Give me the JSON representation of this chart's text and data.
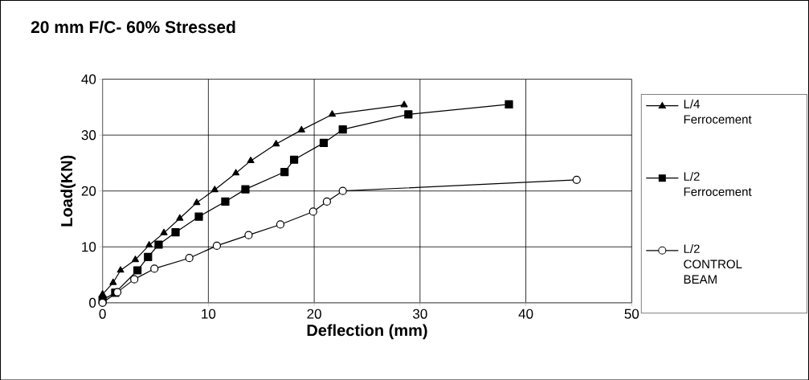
{
  "chart_data": {
    "type": "line",
    "title": "20 mm F/C- 60% Stressed",
    "xlabel": "Deflection (mm)",
    "ylabel": "Load(KN)",
    "xlim": [
      0,
      50
    ],
    "xticks": [
      0,
      10,
      20,
      30,
      40,
      50
    ],
    "ylim": [
      0,
      40
    ],
    "yticks": [
      0,
      10,
      20,
      30,
      40
    ],
    "grid": true,
    "legend": "right",
    "series": [
      {
        "name": "L/4 Ferrocement",
        "color": "#000000",
        "marker": "triangle",
        "x": [
          0,
          1.0,
          1.7,
          3.1,
          4.4,
          5.8,
          7.3,
          8.9,
          10.6,
          12.6,
          14.0,
          16.4,
          18.8,
          21.7,
          28.5
        ],
        "values": [
          1.5,
          3.6,
          5.8,
          7.7,
          10.3,
          12.5,
          15.1,
          17.9,
          20.2,
          23.2,
          25.4,
          28.4,
          30.9,
          33.7,
          35.4
        ]
      },
      {
        "name": "L/2 Ferrocement",
        "color": "#000000",
        "marker": "square",
        "x": [
          0,
          1.2,
          3.3,
          4.3,
          5.3,
          6.9,
          9.1,
          11.6,
          13.5,
          17.2,
          18.1,
          20.9,
          22.7,
          28.9,
          38.4
        ],
        "values": [
          0.5,
          1.8,
          5.8,
          8.2,
          10.4,
          12.6,
          15.4,
          18.1,
          20.3,
          23.4,
          25.6,
          28.6,
          31.0,
          33.7,
          35.5
        ]
      },
      {
        "name": "L/2 CONTROL BEAM",
        "color": "#000000",
        "marker": "circle",
        "x": [
          0,
          1.4,
          3.0,
          4.9,
          8.2,
          10.8,
          13.8,
          16.8,
          19.9,
          21.2,
          22.7,
          44.8
        ],
        "values": [
          0,
          1.9,
          4.2,
          6.1,
          8.0,
          10.2,
          12.1,
          14.0,
          16.3,
          18.1,
          20.0,
          22.0
        ]
      }
    ]
  }
}
